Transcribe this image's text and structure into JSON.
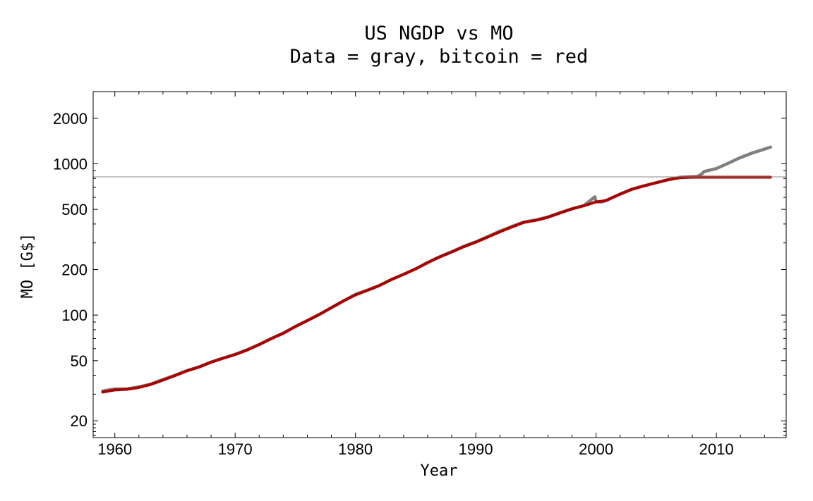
{
  "chart_data": {
    "type": "line",
    "title": "US NGDP vs MO",
    "subtitle": "Data = gray, bitcoin = red",
    "xlabel": "Year",
    "ylabel": "MO [G$]",
    "xlim": [
      1958.2,
      2015.8
    ],
    "ylim": [
      15.5,
      3000
    ],
    "yscale": "log",
    "x_ticks": [
      1960,
      1970,
      1980,
      1990,
      2000,
      2010
    ],
    "y_ticks": [
      20,
      50,
      100,
      200,
      500,
      1000,
      2000
    ],
    "x_minor_step": 2,
    "y_minor_ticks": [
      16,
      17,
      18,
      19,
      30,
      40,
      60,
      70,
      80,
      90,
      300,
      400,
      600,
      700,
      800,
      900,
      3000
    ],
    "hline": 820,
    "grid": false,
    "series": [
      {
        "color": "#808080",
        "x": [
          1959,
          1960,
          1961,
          1962,
          1963,
          1964,
          1965,
          1966,
          1967,
          1968,
          1969,
          1970,
          1971,
          1972,
          1973,
          1974,
          1975,
          1976,
          1977,
          1978,
          1979,
          1980,
          1981,
          1982,
          1983,
          1984,
          1985,
          1986,
          1987,
          1988,
          1989,
          1990,
          1991,
          1992,
          1993,
          1994,
          1995,
          1996,
          1997,
          1998,
          1999,
          1999.9,
          2000,
          2000.5,
          2001,
          2002,
          2003,
          2004,
          2005,
          2006,
          2007,
          2008,
          2008.4,
          2008.8,
          2009,
          2010,
          2011,
          2012,
          2013,
          2014,
          2014.5
        ],
        "y": [
          31.5,
          32.5,
          32.5,
          33.5,
          35,
          37.5,
          40,
          43,
          45.5,
          49,
          52,
          55,
          59,
          64,
          70,
          76,
          84,
          92,
          101,
          112,
          124,
          137,
          146,
          157,
          172,
          186,
          202,
          223,
          243,
          262,
          285,
          305,
          330,
          358,
          385,
          412,
          425,
          445,
          475,
          505,
          530,
          605,
          560,
          560,
          580,
          630,
          680,
          715,
          750,
          785,
          815,
          820,
          820,
          860,
          890,
          930,
          1010,
          1100,
          1180,
          1250,
          1290
        ]
      },
      {
        "color": "#aa0000",
        "x": [
          1959,
          1960,
          1961,
          1962,
          1963,
          1964,
          1965,
          1966,
          1967,
          1968,
          1969,
          1970,
          1971,
          1972,
          1973,
          1974,
          1975,
          1976,
          1977,
          1978,
          1979,
          1980,
          1981,
          1982,
          1983,
          1984,
          1985,
          1986,
          1987,
          1988,
          1989,
          1990,
          1991,
          1992,
          1993,
          1994,
          1995,
          1996,
          1997,
          1998,
          1999,
          2000,
          2000.8,
          2001,
          2002,
          2003,
          2004,
          2005,
          2006,
          2007,
          2008,
          2009,
          2010,
          2011,
          2012,
          2013,
          2014,
          2014.5
        ],
        "y": [
          31,
          32,
          32.3,
          33.2,
          34.8,
          37.2,
          39.8,
          42.8,
          45.3,
          48.8,
          51.8,
          54.8,
          58.8,
          63.8,
          69.8,
          75.8,
          83.8,
          91.8,
          101,
          112,
          124,
          136,
          146,
          157,
          172,
          186,
          202,
          222,
          242,
          261,
          283,
          303,
          328,
          355,
          382,
          410,
          423,
          443,
          473,
          503,
          528,
          560,
          570,
          580,
          630,
          680,
          715,
          750,
          785,
          810,
          815,
          815,
          815,
          815,
          815,
          815,
          815,
          815
        ]
      }
    ]
  }
}
